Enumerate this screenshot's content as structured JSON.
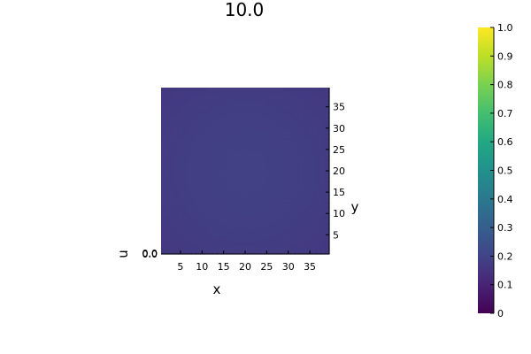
{
  "chart_data": {
    "type": "heatmap",
    "title": "10.0",
    "xlabel": "x",
    "ylabel": "y",
    "zlabel": "u",
    "x_ticks": [
      "5",
      "10",
      "15",
      "20",
      "25",
      "30",
      "35"
    ],
    "x_tick_values": [
      5,
      10,
      15,
      20,
      25,
      30,
      35
    ],
    "y_ticks": [
      "5",
      "10",
      "15",
      "20",
      "25",
      "30",
      "35"
    ],
    "y_tick_values": [
      5,
      10,
      15,
      20,
      25,
      30,
      35
    ],
    "z_ticks": [
      "0.0",
      "0.0",
      "0.0"
    ],
    "xlim": [
      0.5,
      39.5
    ],
    "ylim": [
      0.5,
      39.5
    ],
    "nx": 39,
    "ny": 39,
    "z_center": 0.19,
    "z_edge": 0.16,
    "colorbar": {
      "ticks": [
        "0",
        "0.1",
        "0.2",
        "0.3",
        "0.4",
        "0.5",
        "0.6",
        "0.7",
        "0.8",
        "0.9",
        "1.0"
      ],
      "tick_values": [
        0,
        0.1,
        0.2,
        0.3,
        0.4,
        0.5,
        0.6,
        0.7,
        0.8,
        0.9,
        1.0
      ],
      "range": [
        0,
        1
      ],
      "colormap": "viridis"
    },
    "grid": false
  }
}
